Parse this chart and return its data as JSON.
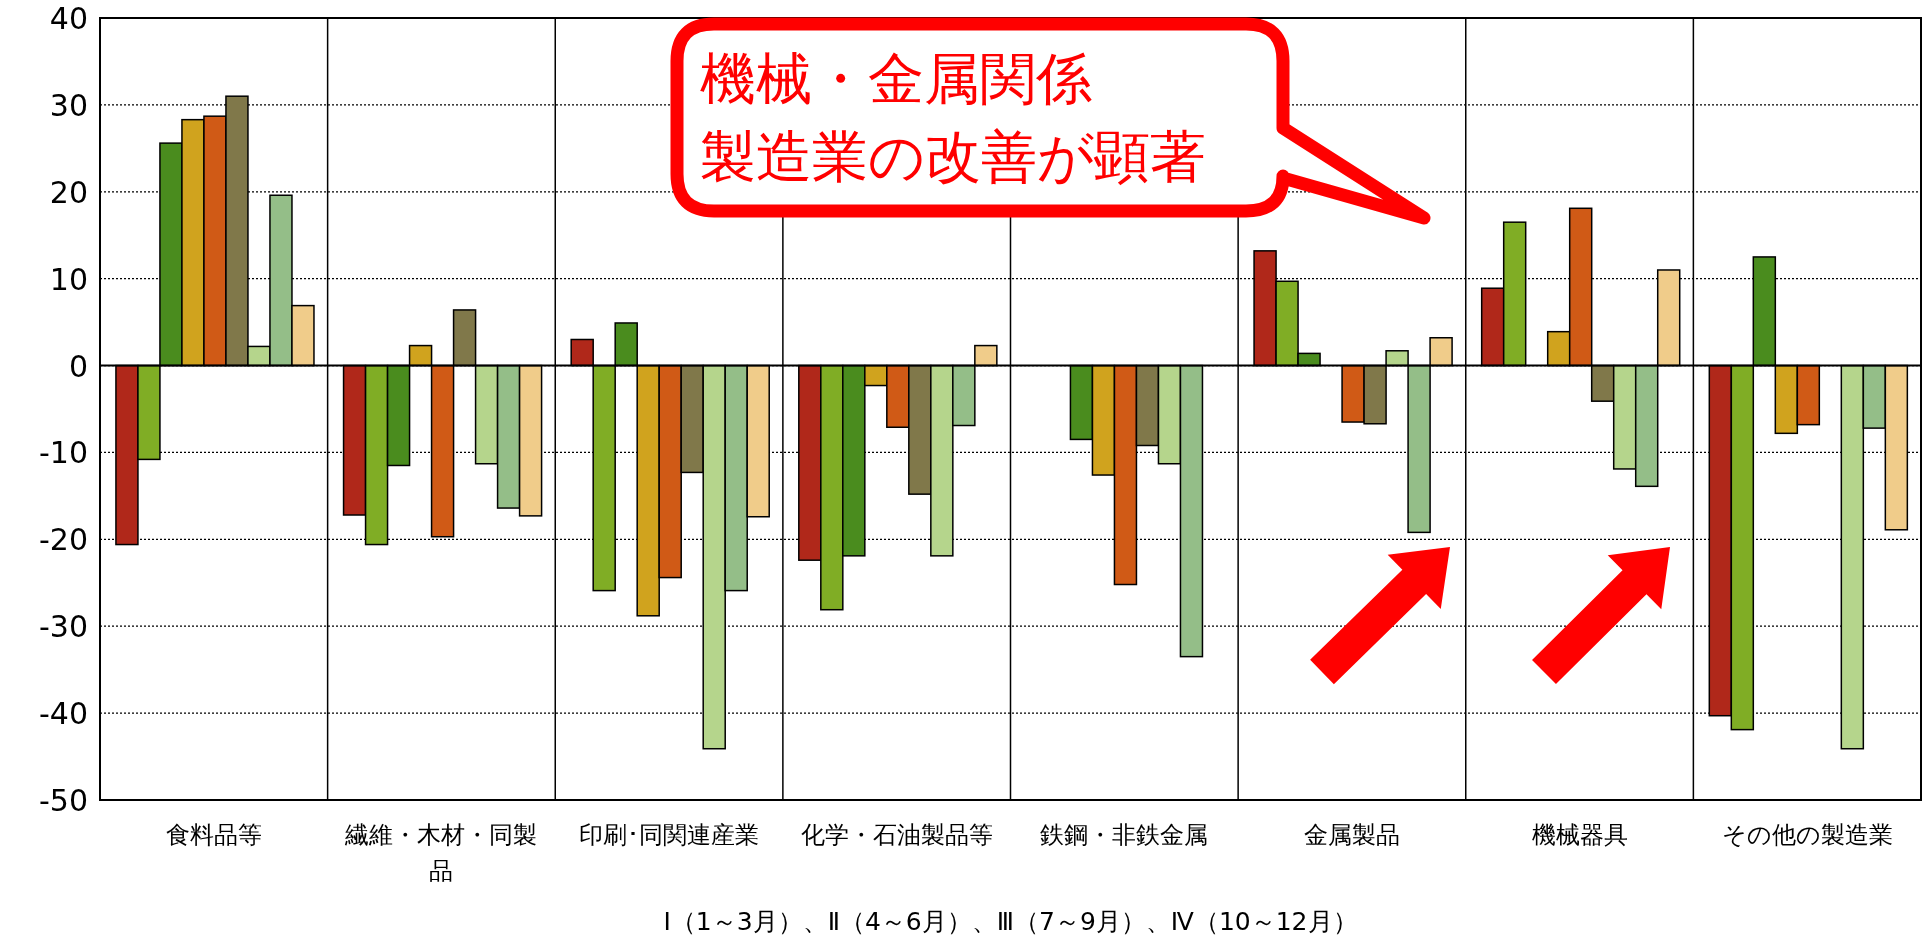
{
  "chart_data": {
    "type": "bar",
    "categories": [
      "食料品等",
      "繊維・木材・同製品",
      "印刷･同関連産業",
      "化学・石油製品等",
      "鉄鋼・非鉄金属",
      "金属製品",
      "機械器具",
      "その他の製造業"
    ],
    "series": [
      {
        "color": "#b0281a",
        "values": [
          -20.6,
          -17.2,
          3.0,
          -22.4,
          null,
          13.2,
          8.9,
          -40.3
        ]
      },
      {
        "color": "#80ad25",
        "values": [
          -10.8,
          -20.6,
          -25.9,
          -28.1,
          null,
          9.7,
          16.5,
          -41.9
        ]
      },
      {
        "color": "#4a8c1e",
        "values": [
          25.6,
          -11.5,
          4.9,
          -21.9,
          -8.5,
          1.4,
          null,
          12.5
        ]
      },
      {
        "color": "#d0a31e",
        "values": [
          28.3,
          2.3,
          -28.8,
          -2.3,
          -12.6,
          null,
          3.9,
          -7.8
        ]
      },
      {
        "color": "#d05a16",
        "values": [
          28.7,
          -19.7,
          -24.4,
          -7.1,
          -25.2,
          -6.5,
          18.1,
          -6.8
        ]
      },
      {
        "color": "#80784a",
        "values": [
          31.0,
          6.4,
          -12.3,
          -14.8,
          -9.2,
          -6.7,
          -4.1,
          null
        ]
      },
      {
        "color": "#b5d58c",
        "values": [
          2.2,
          -11.3,
          -44.1,
          -21.9,
          -11.3,
          1.7,
          -11.9,
          -44.1
        ]
      },
      {
        "color": "#94be88",
        "values": [
          19.6,
          -16.4,
          -25.9,
          -6.9,
          -33.5,
          -19.2,
          -13.9,
          -7.2
        ]
      },
      {
        "color": "#f0cc8a",
        "values": [
          6.9,
          -17.3,
          -17.4,
          2.3,
          null,
          3.2,
          11.0,
          -18.9
        ]
      }
    ],
    "ylim": [
      -50,
      40
    ],
    "yticks": [
      -50,
      -40,
      -30,
      -20,
      -10,
      0,
      10,
      20,
      30,
      40
    ],
    "grid": "y",
    "xlabel": "Ⅰ（1～3月）、Ⅱ（4～6月）、Ⅲ（7～9月）、Ⅳ（10～12月）",
    "annotations": [
      "機械・金属関係",
      "製造業の改善が顕著"
    ]
  }
}
